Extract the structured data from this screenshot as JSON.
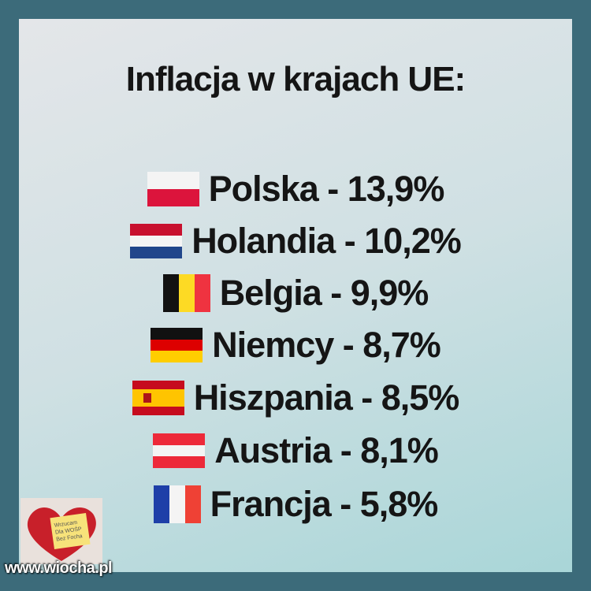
{
  "header": {
    "title": "Inflacja w krajach UE:"
  },
  "items": [
    {
      "text": "Polska - 13,9%"
    },
    {
      "text": "Holandia - 10,2%"
    },
    {
      "text": "Belgia - 9,9%"
    },
    {
      "text": "Niemcy - 8,7%"
    },
    {
      "text": "Hiszpania - 8,5%"
    },
    {
      "text": "Austria - 8,1%"
    },
    {
      "text": "Francja - 5,8%"
    }
  ],
  "sticker": {
    "text": "Wrzucam Dla WOŚP Bez Focha"
  },
  "watermark": "www.wiocha.pl"
}
